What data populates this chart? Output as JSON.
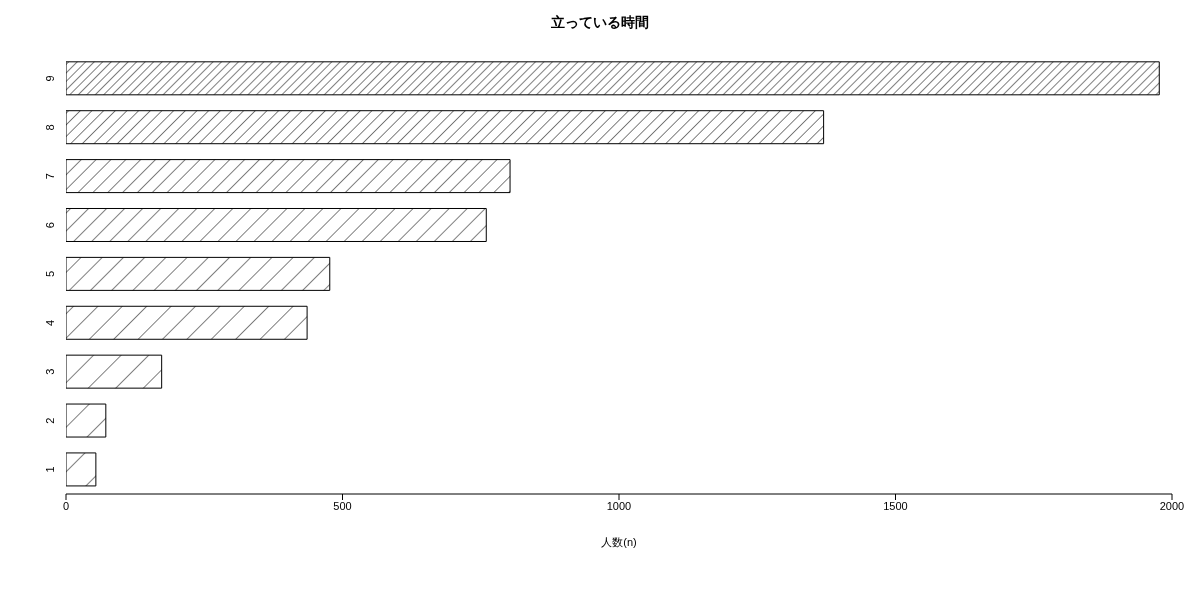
{
  "chart_data": {
    "type": "bar",
    "orientation": "horizontal",
    "title": "立っている時間",
    "xlabel": "人数(n)",
    "categories": [
      "9",
      "8",
      "7",
      "6",
      "5",
      "4",
      "3",
      "2",
      "1"
    ],
    "values": [
      1977,
      1370,
      803,
      760,
      477,
      436,
      173,
      72,
      54
    ],
    "color": "#000000",
    "xlim": [
      0,
      2000
    ],
    "xticks": [
      0,
      500,
      1000,
      1500,
      2000
    ]
  }
}
